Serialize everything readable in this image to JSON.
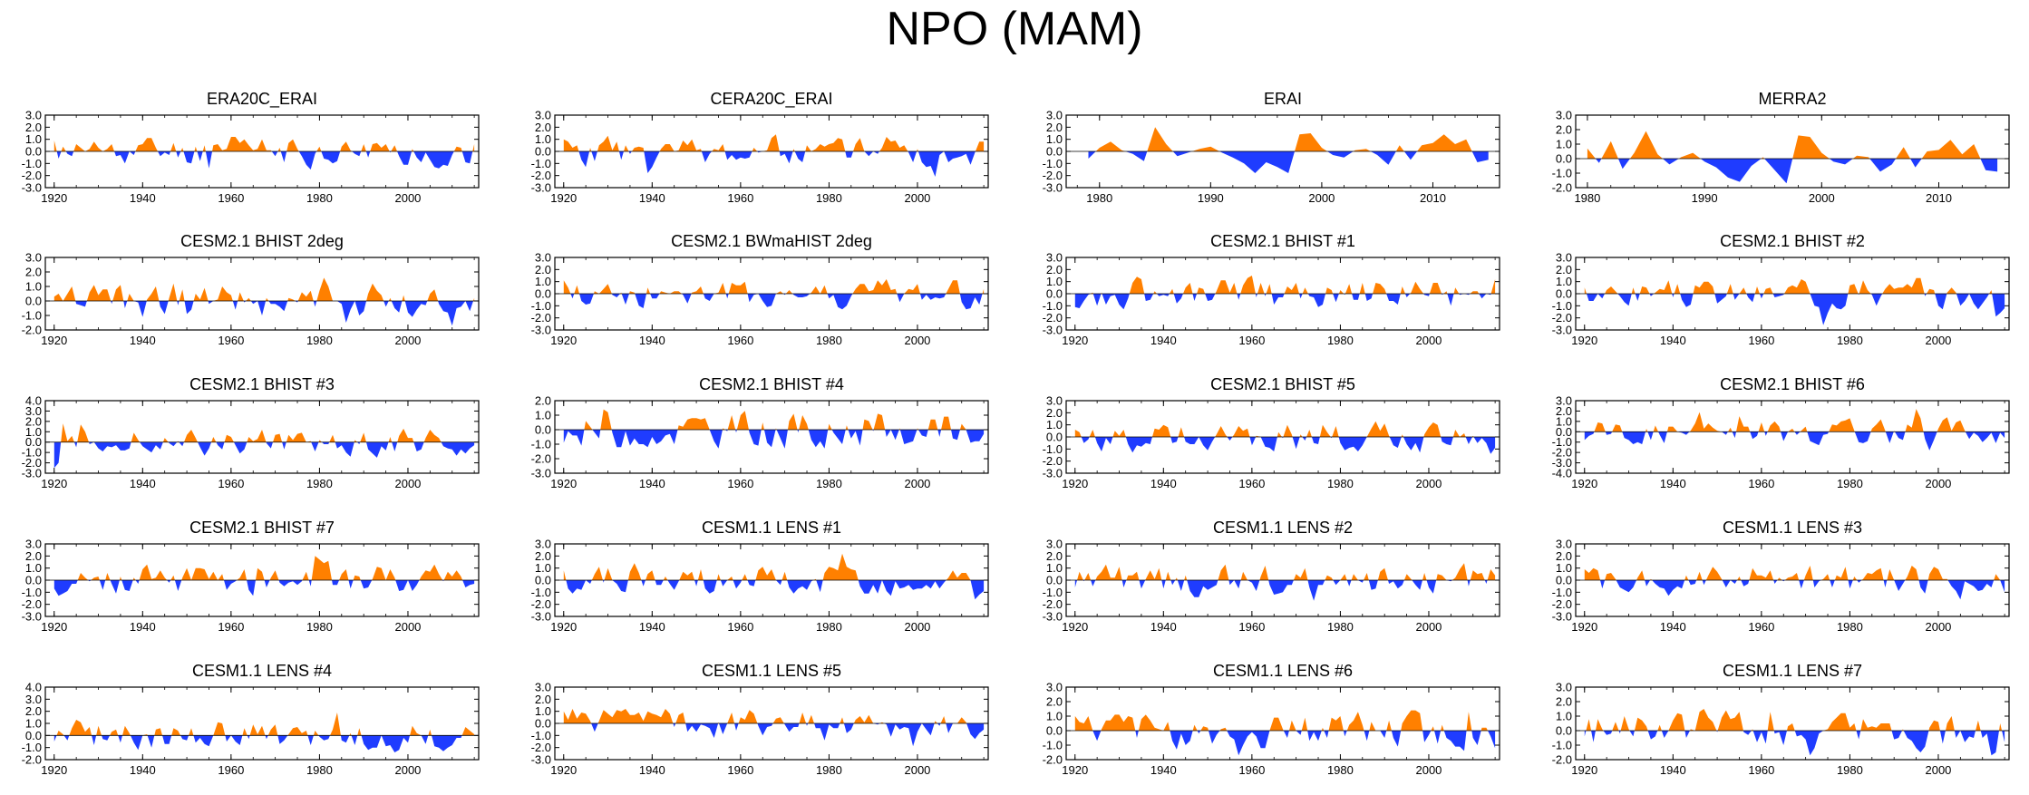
{
  "figure_title": "NPO (MAM)",
  "colors": {
    "positive": "#ff8000",
    "negative": "#1f3cff",
    "axis": "#000000"
  },
  "chart_data": [
    {
      "type": "area",
      "title": "ERA20C_ERAI",
      "xlim": [
        1918,
        2016
      ],
      "ylim": [
        -3,
        3
      ],
      "yticks": [
        "3.0",
        "2.0",
        "1.0",
        "0.0",
        "-1.0",
        "-2.0",
        "-3.0"
      ],
      "xticks": [
        1920,
        1940,
        1960,
        1980,
        2000
      ],
      "seed": 11
    },
    {
      "type": "area",
      "title": "CERA20C_ERAI",
      "xlim": [
        1918,
        2016
      ],
      "ylim": [
        -3,
        3
      ],
      "yticks": [
        "3.0",
        "2.0",
        "1.0",
        "0.0",
        "-1.0",
        "-2.0",
        "-3.0"
      ],
      "xticks": [
        1920,
        1940,
        1960,
        1980,
        2000
      ],
      "seed": 23
    },
    {
      "type": "area",
      "title": "ERAI",
      "xlim": [
        1977,
        2016
      ],
      "ylim": [
        -3,
        3
      ],
      "yticks": [
        "3.0",
        "2.0",
        "1.0",
        "0.0",
        "-1.0",
        "-2.0",
        "-3.0"
      ],
      "xticks": [
        1980,
        1990,
        2000,
        2010
      ],
      "x": [
        1979,
        1980,
        1981,
        1982,
        1983,
        1984,
        1985,
        1986,
        1987,
        1988,
        1989,
        1990,
        1991,
        1992,
        1993,
        1994,
        1995,
        1996,
        1997,
        1998,
        1999,
        2000,
        2001,
        2002,
        2003,
        2004,
        2005,
        2006,
        2007,
        2008,
        2009,
        2010,
        2011,
        2012,
        2013,
        2014,
        2015
      ],
      "values": [
        -0.6,
        0.3,
        0.8,
        0.1,
        -0.2,
        -0.8,
        2.0,
        0.6,
        -0.4,
        -0.1,
        0.2,
        0.4,
        -0.1,
        -0.5,
        -1.0,
        -1.8,
        -0.9,
        -1.3,
        -1.8,
        1.4,
        1.5,
        0.3,
        -0.3,
        -0.5,
        0.1,
        0.2,
        -0.3,
        -1.1,
        0.5,
        -0.7,
        0.5,
        0.7,
        1.4,
        0.6,
        1.0,
        -0.9,
        -0.7
      ]
    },
    {
      "type": "area",
      "title": "MERRA2",
      "xlim": [
        1979,
        2016
      ],
      "ylim": [
        -2,
        3
      ],
      "yticks": [
        "3.0",
        "2.0",
        "1.0",
        "0.0",
        "-1.0",
        "-2.0"
      ],
      "xticks": [
        1980,
        1990,
        2000,
        2010
      ],
      "x": [
        1980,
        1981,
        1982,
        1983,
        1984,
        1985,
        1986,
        1987,
        1988,
        1989,
        1990,
        1991,
        1992,
        1993,
        1994,
        1995,
        1996,
        1997,
        1998,
        1999,
        2000,
        2001,
        2002,
        2003,
        2004,
        2005,
        2006,
        2007,
        2008,
        2009,
        2010,
        2011,
        2012,
        2013,
        2014,
        2015
      ],
      "values": [
        0.7,
        -0.3,
        1.2,
        -0.7,
        0.4,
        1.9,
        0.3,
        -0.4,
        0.1,
        0.4,
        -0.2,
        -0.6,
        -1.3,
        -1.6,
        -0.5,
        0.1,
        -0.8,
        -1.7,
        1.6,
        1.5,
        0.4,
        -0.2,
        -0.4,
        0.2,
        0.1,
        -0.9,
        -0.4,
        0.8,
        -0.6,
        0.5,
        0.6,
        1.3,
        0.3,
        1.0,
        -0.8,
        -0.9
      ]
    },
    {
      "type": "area",
      "title": "CESM2.1 BHIST 2deg",
      "xlim": [
        1918,
        2016
      ],
      "ylim": [
        -2,
        3
      ],
      "yticks": [
        "3.0",
        "2.0",
        "1.0",
        "0.0",
        "-1.0",
        "-2.0"
      ],
      "xticks": [
        1920,
        1940,
        1960,
        1980,
        2000
      ],
      "seed": 37
    },
    {
      "type": "area",
      "title": "CESM2.1 BWmaHIST 2deg",
      "xlim": [
        1918,
        2016
      ],
      "ylim": [
        -3,
        3
      ],
      "yticks": [
        "3.0",
        "2.0",
        "1.0",
        "0.0",
        "-1.0",
        "-2.0",
        "-3.0"
      ],
      "xticks": [
        1920,
        1940,
        1960,
        1980,
        2000
      ],
      "seed": 41
    },
    {
      "type": "area",
      "title": "CESM2.1 BHIST #1",
      "xlim": [
        1918,
        2016
      ],
      "ylim": [
        -3,
        3
      ],
      "yticks": [
        "3.0",
        "2.0",
        "1.0",
        "0.0",
        "-1.0",
        "-2.0",
        "-3.0"
      ],
      "xticks": [
        1920,
        1940,
        1960,
        1980,
        2000
      ],
      "seed": 53
    },
    {
      "type": "area",
      "title": "CESM2.1 BHIST #2",
      "xlim": [
        1918,
        2016
      ],
      "ylim": [
        -3,
        3
      ],
      "yticks": [
        "3.0",
        "2.0",
        "1.0",
        "0.0",
        "-1.0",
        "-2.0",
        "-3.0"
      ],
      "xticks": [
        1920,
        1940,
        1960,
        1980,
        2000
      ],
      "seed": 67
    },
    {
      "type": "area",
      "title": "CESM2.1 BHIST #3",
      "xlim": [
        1918,
        2016
      ],
      "ylim": [
        -3,
        4
      ],
      "yticks": [
        "4.0",
        "3.0",
        "2.0",
        "1.0",
        "0.0",
        "-1.0",
        "-2.0",
        "-3.0"
      ],
      "xticks": [
        1920,
        1940,
        1960,
        1980,
        2000
      ],
      "seed": 71
    },
    {
      "type": "area",
      "title": "CESM2.1 BHIST #4",
      "xlim": [
        1918,
        2016
      ],
      "ylim": [
        -3,
        2
      ],
      "yticks": [
        "2.0",
        "1.0",
        "0.0",
        "-1.0",
        "-2.0",
        "-3.0"
      ],
      "xticks": [
        1920,
        1940,
        1960,
        1980,
        2000
      ],
      "seed": 83
    },
    {
      "type": "area",
      "title": "CESM2.1 BHIST #5",
      "xlim": [
        1918,
        2016
      ],
      "ylim": [
        -3,
        3
      ],
      "yticks": [
        "3.0",
        "2.0",
        "1.0",
        "0.0",
        "-1.0",
        "-2.0",
        "-3.0"
      ],
      "xticks": [
        1920,
        1940,
        1960,
        1980,
        2000
      ],
      "seed": 97
    },
    {
      "type": "area",
      "title": "CESM2.1 BHIST #6",
      "xlim": [
        1918,
        2016
      ],
      "ylim": [
        -4,
        3
      ],
      "yticks": [
        "3.0",
        "2.0",
        "1.0",
        "0.0",
        "-1.0",
        "-2.0",
        "-3.0",
        "-4.0"
      ],
      "xticks": [
        1920,
        1940,
        1960,
        1980,
        2000
      ],
      "seed": 101
    },
    {
      "type": "area",
      "title": "CESM2.1 BHIST #7",
      "xlim": [
        1918,
        2016
      ],
      "ylim": [
        -3,
        3
      ],
      "yticks": [
        "3.0",
        "2.0",
        "1.0",
        "0.0",
        "-1.0",
        "-2.0",
        "-3.0"
      ],
      "xticks": [
        1920,
        1940,
        1960,
        1980,
        2000
      ],
      "seed": 113
    },
    {
      "type": "area",
      "title": "CESM1.1 LENS #1",
      "xlim": [
        1918,
        2016
      ],
      "ylim": [
        -3,
        3
      ],
      "yticks": [
        "3.0",
        "2.0",
        "1.0",
        "0.0",
        "-1.0",
        "-2.0",
        "-3.0"
      ],
      "xticks": [
        1920,
        1940,
        1960,
        1980,
        2000
      ],
      "seed": 127
    },
    {
      "type": "area",
      "title": "CESM1.1 LENS #2",
      "xlim": [
        1918,
        2016
      ],
      "ylim": [
        -3,
        3
      ],
      "yticks": [
        "3.0",
        "2.0",
        "1.0",
        "0.0",
        "-1.0",
        "-2.0",
        "-3.0"
      ],
      "xticks": [
        1920,
        1940,
        1960,
        1980,
        2000
      ],
      "seed": 131
    },
    {
      "type": "area",
      "title": "CESM1.1 LENS #3",
      "xlim": [
        1918,
        2016
      ],
      "ylim": [
        -3,
        3
      ],
      "yticks": [
        "3.0",
        "2.0",
        "1.0",
        "0.0",
        "-1.0",
        "-2.0",
        "-3.0"
      ],
      "xticks": [
        1920,
        1940,
        1960,
        1980,
        2000
      ],
      "seed": 139
    },
    {
      "type": "area",
      "title": "CESM1.1 LENS #4",
      "xlim": [
        1918,
        2016
      ],
      "ylim": [
        -2,
        4
      ],
      "yticks": [
        "4.0",
        "3.0",
        "2.0",
        "1.0",
        "0.0",
        "-1.0",
        "-2.0"
      ],
      "xticks": [
        1920,
        1940,
        1960,
        1980,
        2000
      ],
      "seed": 149
    },
    {
      "type": "area",
      "title": "CESM1.1 LENS #5",
      "xlim": [
        1918,
        2016
      ],
      "ylim": [
        -3,
        3
      ],
      "yticks": [
        "3.0",
        "2.0",
        "1.0",
        "0.0",
        "-1.0",
        "-2.0",
        "-3.0"
      ],
      "xticks": [
        1920,
        1940,
        1960,
        1980,
        2000
      ],
      "seed": 157
    },
    {
      "type": "area",
      "title": "CESM1.1 LENS #6",
      "xlim": [
        1918,
        2016
      ],
      "ylim": [
        -2,
        3
      ],
      "yticks": [
        "3.0",
        "2.0",
        "1.0",
        "0.0",
        "-1.0",
        "-2.0"
      ],
      "xticks": [
        1920,
        1940,
        1960,
        1980,
        2000
      ],
      "seed": 163
    },
    {
      "type": "area",
      "title": "CESM1.1 LENS #7",
      "xlim": [
        1918,
        2016
      ],
      "ylim": [
        -2,
        3
      ],
      "yticks": [
        "3.0",
        "2.0",
        "1.0",
        "0.0",
        "-1.0",
        "-2.0"
      ],
      "xticks": [
        1920,
        1940,
        1960,
        1980,
        2000
      ],
      "seed": 173
    }
  ]
}
